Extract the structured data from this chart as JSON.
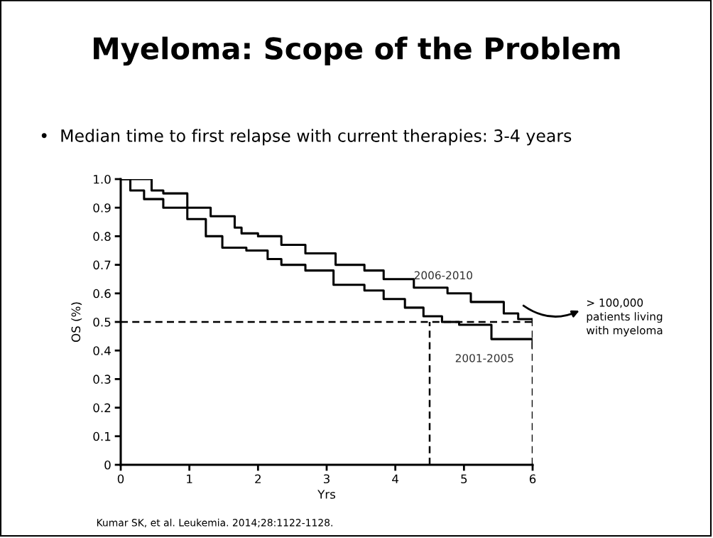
{
  "chart_data": {
    "type": "step",
    "title": "Myeloma: Scope of the Problem",
    "subtitle": "•  Median time to first relapse with current therapies: 3-4 years",
    "xlabel": "Yrs",
    "ylabel": "OS (%)",
    "series": [
      {
        "name": "2006-2010",
        "color": "#000000",
        "x": [
          0,
          0.45,
          0.62,
          0.97,
          1.31,
          1.66,
          1.76,
          2.0,
          2.34,
          2.69,
          3.13,
          3.55,
          3.83,
          4.27,
          4.76,
          5.1,
          5.58,
          5.79,
          6.0
        ],
        "values": [
          1.0,
          0.96,
          0.95,
          0.9,
          0.87,
          0.83,
          0.81,
          0.8,
          0.77,
          0.74,
          0.7,
          0.68,
          0.65,
          0.62,
          0.6,
          0.57,
          0.53,
          0.51,
          0.5
        ]
      },
      {
        "name": "2001-2005",
        "color": "#000000",
        "x": [
          0,
          0.14,
          0.34,
          0.62,
          0.97,
          1.24,
          1.48,
          1.83,
          2.14,
          2.34,
          2.69,
          3.1,
          3.55,
          3.83,
          4.14,
          4.41,
          4.68,
          4.93,
          5.4,
          6.0
        ],
        "values": [
          1.0,
          0.96,
          0.93,
          0.9,
          0.86,
          0.8,
          0.76,
          0.75,
          0.72,
          0.7,
          0.68,
          0.63,
          0.61,
          0.58,
          0.55,
          0.52,
          0.5,
          0.49,
          0.44,
          0.41
        ]
      },
      {
        "type": "line",
        "line_style": "dashed",
        "color": "#000000",
        "x": [
          4.5,
          4.5
        ],
        "values": [
          0,
          0.5
        ]
      },
      {
        "type": "line",
        "line_style": "dashed",
        "color": "#000000",
        "x": [
          6,
          6
        ],
        "values": [
          0,
          0.5
        ]
      }
    ],
    "ref_lines": [
      {
        "axis": "y",
        "value": 0.5,
        "color": "#000000",
        "line_style": "dashed"
      }
    ],
    "xlim": [
      0,
      6
    ],
    "xticks": [
      0,
      1,
      2,
      3,
      4,
      5,
      6
    ],
    "ylim": [
      0,
      1
    ],
    "yticks": [
      0,
      0.1,
      0.2,
      0.3,
      0.4,
      0.5,
      0.6,
      0.7,
      0.8,
      0.9,
      {
        "value": 1,
        "label": "1.0"
      }
    ],
    "annotations": [
      "> 100,000\npatients living\nwith myeloma",
      "Kumar SK, et al. Leukemia. 2014;28:1122-1128."
    ]
  }
}
